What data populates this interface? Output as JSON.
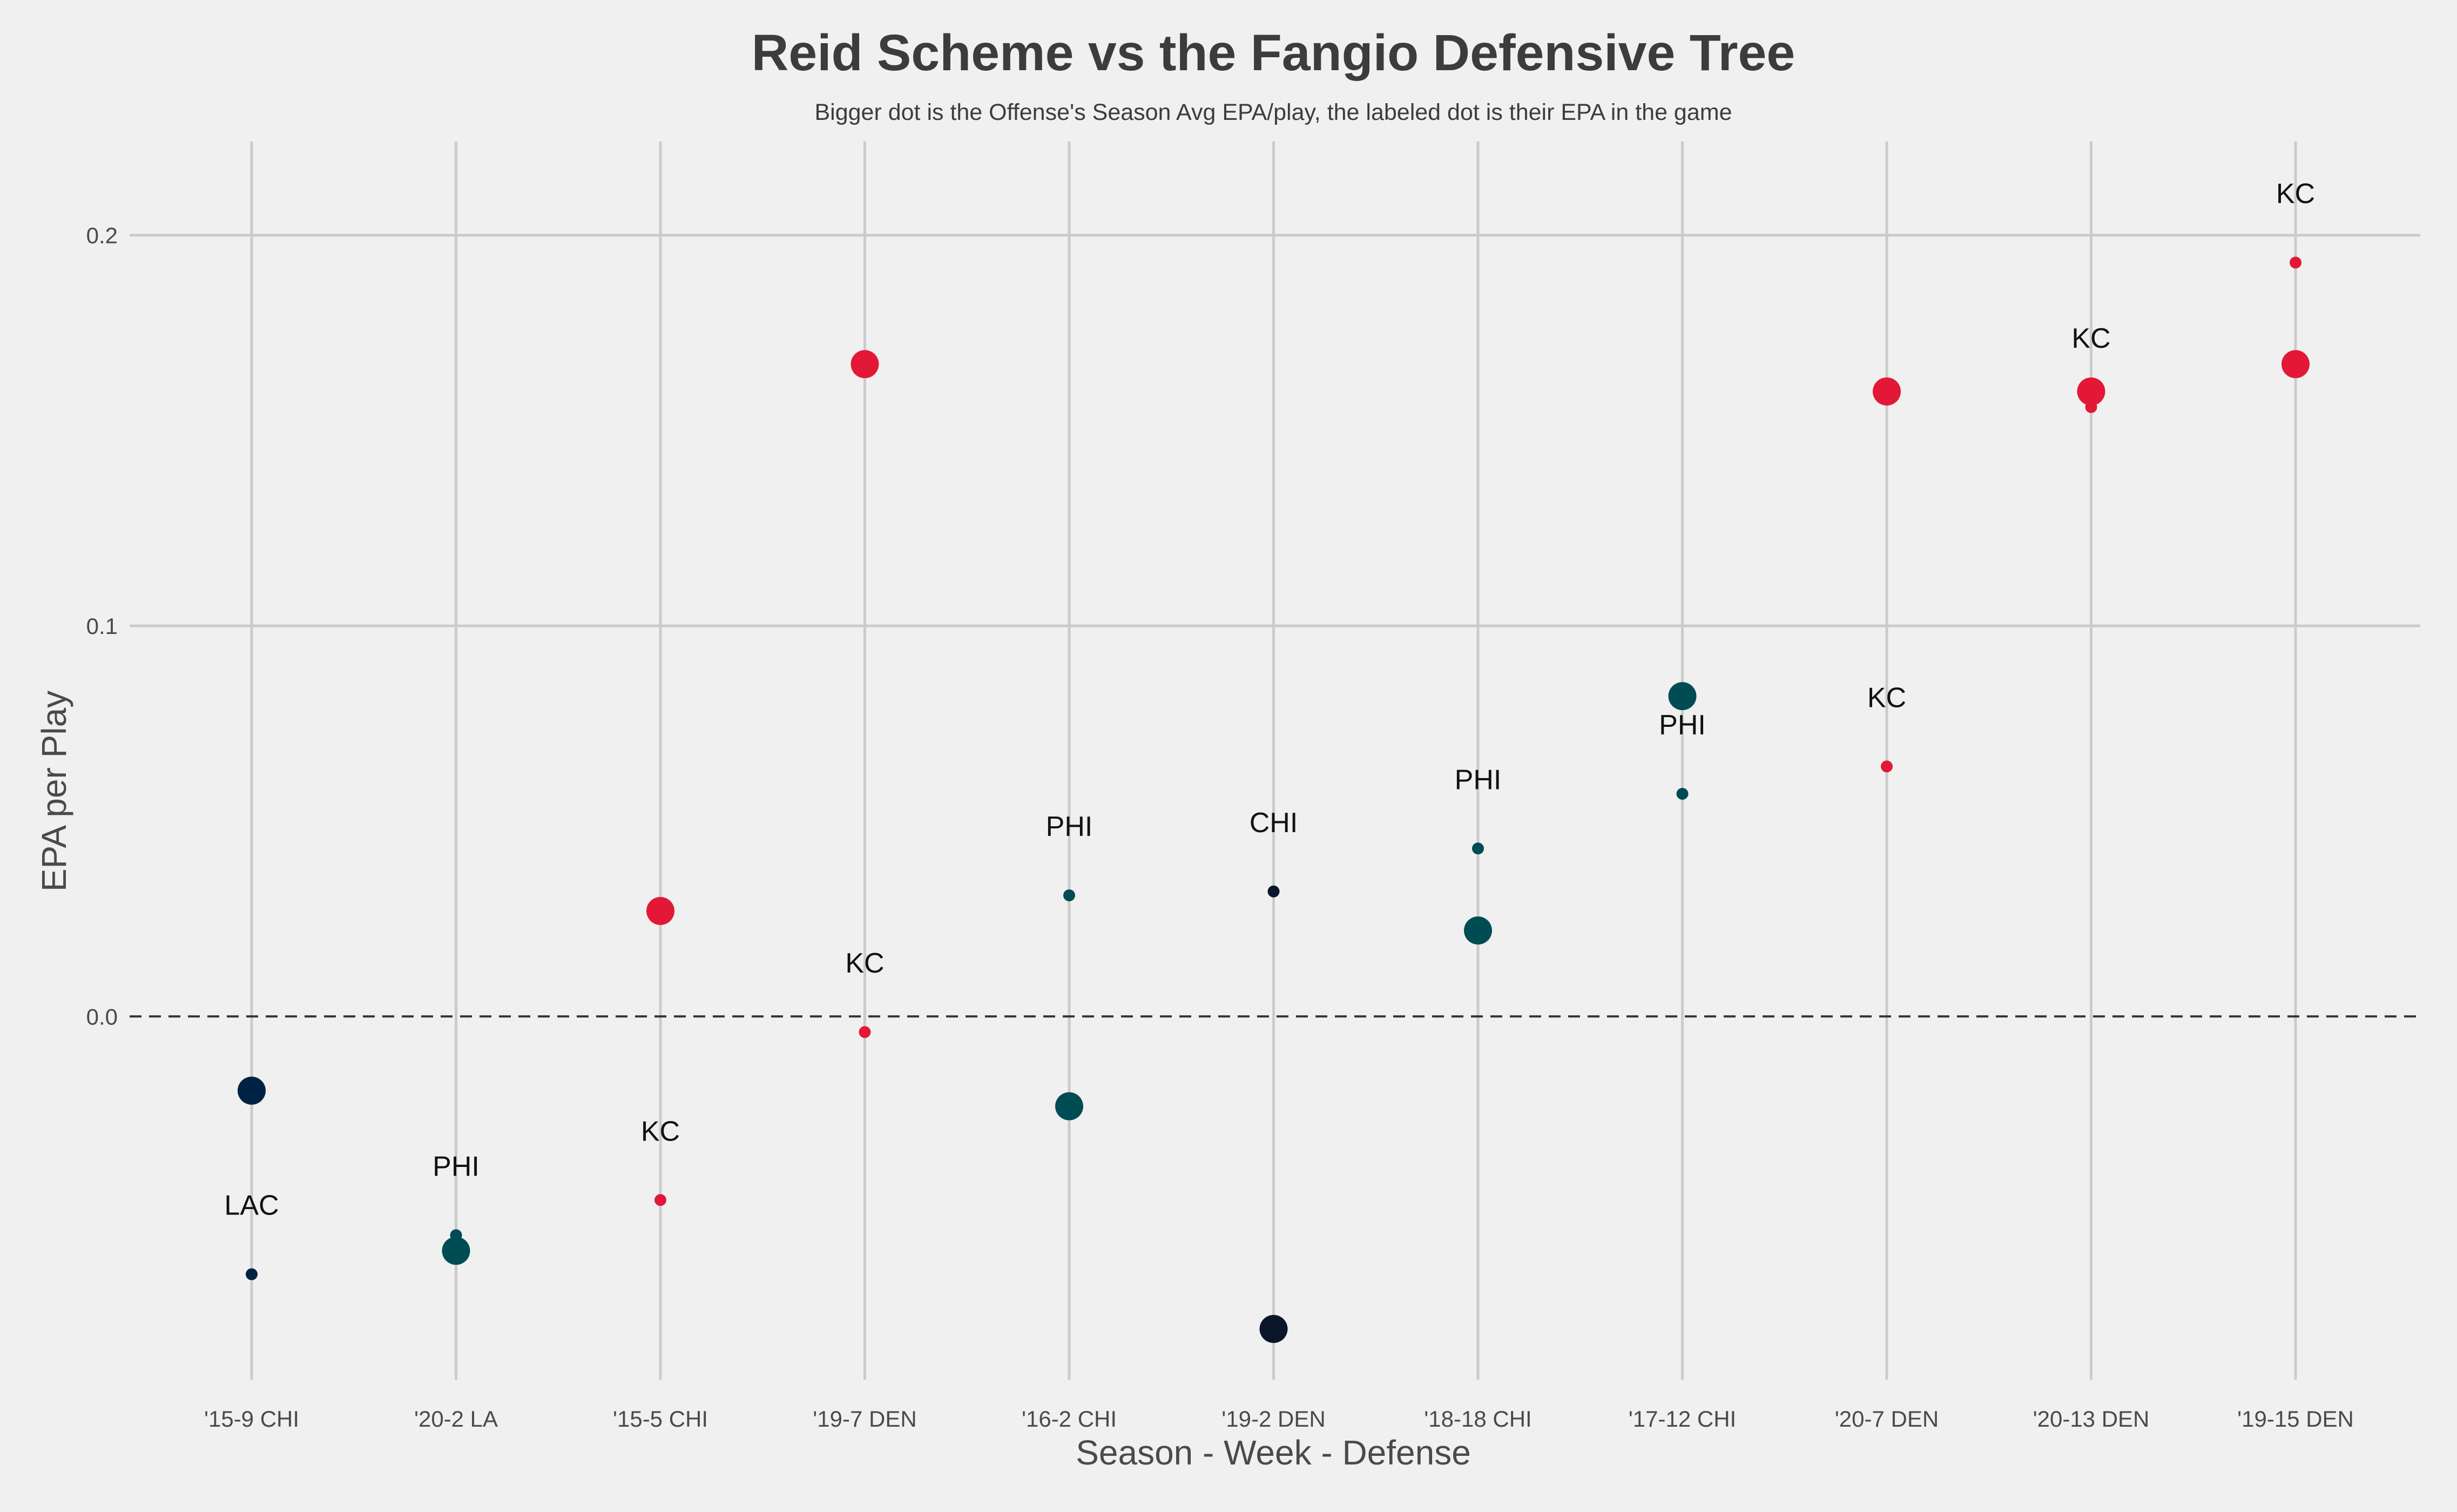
{
  "chart_data": {
    "type": "scatter",
    "title": "Reid Scheme vs the Fangio Defensive Tree",
    "subtitle": "Bigger dot is the Offense's Season Avg EPA/play, the labeled dot is their EPA in the game",
    "xlabel": "Season - Week - Defense",
    "ylabel": "EPA per Play",
    "ylim": [
      -0.093,
      0.224
    ],
    "yticks": [
      0.0,
      0.1,
      0.2
    ],
    "ytick_labels": [
      "0.0",
      "0.1",
      "0.2"
    ],
    "grid": true,
    "zero_line": "dashed",
    "categories": [
      "'15-9 CHI",
      "'20-2 LA",
      "'15-5 CHI",
      "'19-7 DEN",
      "'16-2 CHI",
      "'19-2 DEN",
      "'18-18 CHI",
      "'17-12 CHI",
      "'20-7 DEN",
      "'20-13 DEN",
      "'19-15 DEN"
    ],
    "series": [
      {
        "values": [
          -0.019,
          -0.06,
          0.027,
          0.167,
          -0.023,
          -0.08,
          0.022,
          0.082,
          0.16,
          0.16,
          0.167
        ],
        "colors": [
          "#002244",
          "#004C54",
          "#E31837",
          "#E31837",
          "#004C54",
          "#0B162A",
          "#004C54",
          "#004C54",
          "#E31837",
          "#E31837",
          "#E31837"
        ]
      },
      {
        "values": [
          -0.066,
          -0.056,
          -0.047,
          -0.004,
          0.031,
          0.032,
          0.043,
          0.057,
          0.064,
          0.156,
          0.193
        ],
        "labels": [
          "LAC",
          "PHI",
          "KC",
          "KC",
          "PHI",
          "CHI",
          "PHI",
          "PHI",
          "KC",
          "KC",
          "KC"
        ],
        "colors": [
          "#002244",
          "#004C54",
          "#E31837",
          "#E31837",
          "#004C54",
          "#0B162A",
          "#004C54",
          "#004C54",
          "#E31837",
          "#E31837",
          "#E31837"
        ]
      }
    ]
  }
}
